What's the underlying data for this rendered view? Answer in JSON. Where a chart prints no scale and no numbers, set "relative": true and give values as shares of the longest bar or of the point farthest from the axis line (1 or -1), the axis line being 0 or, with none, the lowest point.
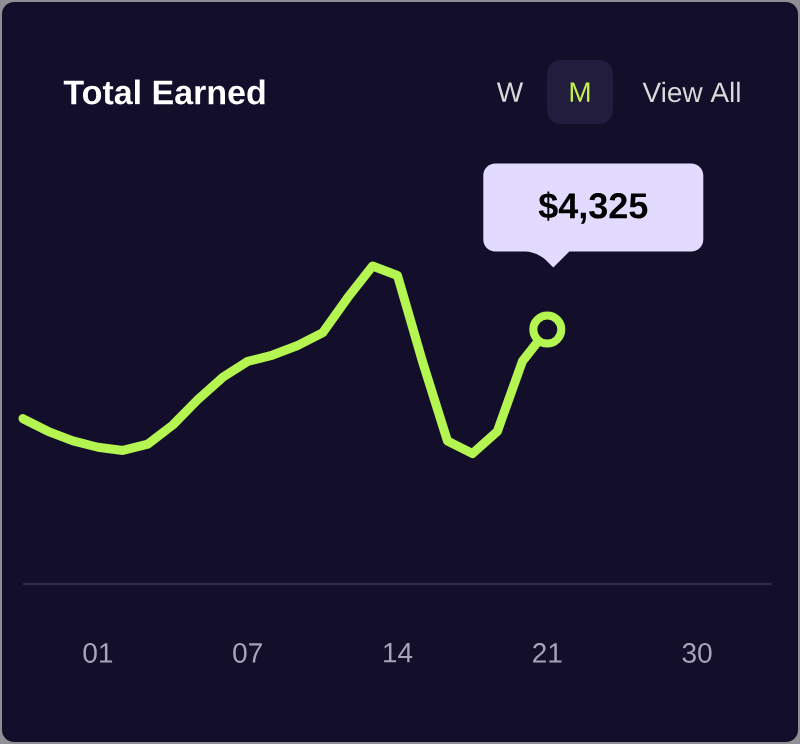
{
  "chart_data": {
    "type": "line",
    "title": "Total Earned",
    "relative": true,
    "categories": [
      null,
      null,
      null,
      "01",
      null,
      null,
      null,
      null,
      null,
      "07",
      null,
      null,
      null,
      null,
      null,
      "14",
      null,
      null,
      null,
      null,
      null,
      "21",
      null,
      null,
      null,
      null,
      null,
      "30",
      null,
      null,
      null
    ],
    "series": [
      {
        "color": "#b5f551",
        "values": [
          0.52,
          0.48,
          0.45,
          0.43,
          0.42,
          0.44,
          0.5,
          0.58,
          0.65,
          0.7,
          0.72,
          0.75,
          0.79,
          0.9,
          1,
          0.97,
          0.7,
          0.45,
          0.41,
          0.48,
          0.7,
          0.8,
          null,
          null,
          null,
          null,
          null,
          null,
          null,
          null,
          null
        ]
      }
    ],
    "tick_labels": "x",
    "grid": false,
    "annotations": [
      "W",
      "M",
      "View All",
      {
        "text": "$4,325",
        "x": "21",
        "y": 0.8
      }
    ]
  }
}
